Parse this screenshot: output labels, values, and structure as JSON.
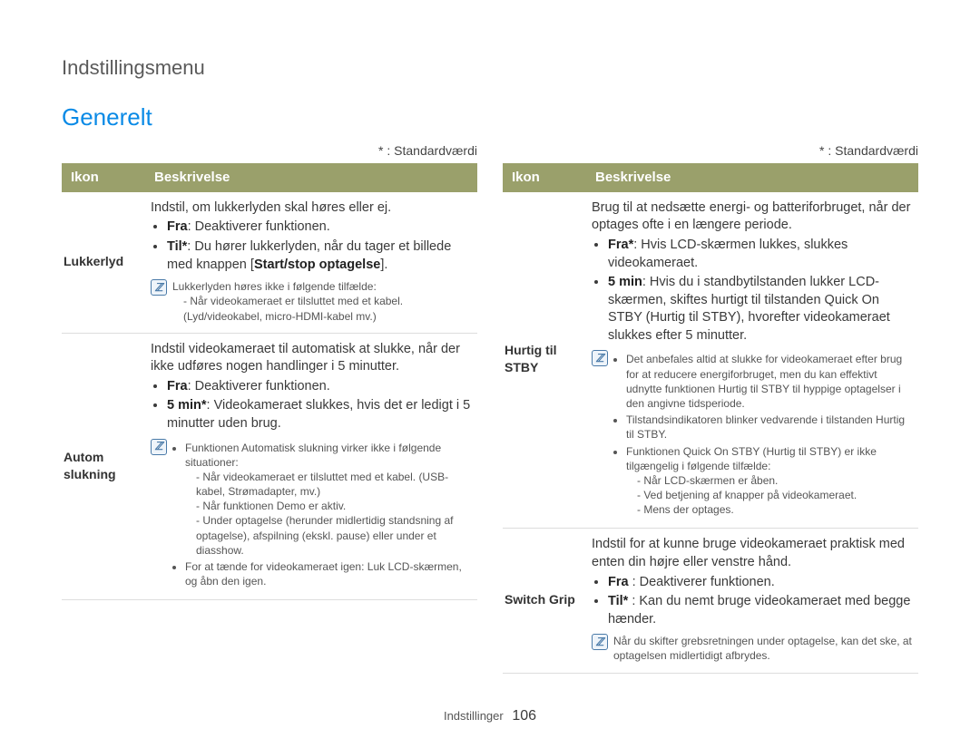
{
  "breadcrumb": "Indstillingsmenu",
  "section_title": "Generelt",
  "std_note": "* : Standardværdi",
  "headers": {
    "icon": "Ikon",
    "desc": "Beskrivelse"
  },
  "footer": {
    "label": "Indstillinger",
    "page": "106"
  },
  "note_glyph": "ℤ",
  "left": {
    "r1": {
      "icon": "Lukkerlyd",
      "intro": "Indstil, om lukkerlyden skal høres eller ej.",
      "b1_label": "Fra",
      "b1_text": ": Deaktiverer funktionen.",
      "b2_label": "Til*",
      "b2_text": ": Du hører lukkerlyden, når du tager et billede med knappen [",
      "b2_strong": "Start/stop optagelse",
      "b2_after": "].",
      "note_l1": "Lukkerlyden høres ikke i følgende tilfælde:",
      "note_l2": "- Når videokameraet er tilsluttet med et kabel. (Lyd/videokabel, micro-HDMI-kabel mv.)"
    },
    "r2": {
      "icon": "Autom slukning",
      "intro": "Indstil videokameraet til automatisk at slukke, når der ikke udføres nogen handlinger i 5 minutter.",
      "b1_label": "Fra",
      "b1_text": ": Deaktiverer funktionen.",
      "b2_label": "5 min*",
      "b2_text": ": Videokameraet slukkes, hvis det er ledigt i 5 minutter uden brug.",
      "note_b1": "Funktionen Automatisk slukning virker ikke i følgende situationer:",
      "note_b1_s1": "- Når videokameraet er tilsluttet med et kabel. (USB-kabel, Strømadapter, mv.)",
      "note_b1_s2": "- Når funktionen Demo er aktiv.",
      "note_b1_s3": "- Under optagelse (herunder midlertidig standsning af optagelse), afspilning (ekskl. pause) eller under et diasshow.",
      "note_b2": "For at tænde for videokameraet igen: Luk LCD-skærmen, og åbn den igen."
    }
  },
  "right": {
    "r1": {
      "icon": "Hurtig til STBY",
      "intro": "Brug til at nedsætte energi- og batteriforbruget, når der optages ofte i en længere periode.",
      "b1_label": "Fra*",
      "b1_text": ": Hvis LCD-skærmen lukkes, slukkes videokameraet.",
      "b2_label": "5 min",
      "b2_text": ": Hvis du i standbytilstanden lukker LCD-skærmen, skiftes hurtigt til tilstanden Quick On STBY (Hurtig til STBY), hvorefter videokameraet slukkes efter 5 minutter.",
      "note_b1": "Det anbefales altid at slukke for videokameraet efter brug for at reducere energiforbruget, men du kan effektivt udnytte funktionen Hurtig til STBY til hyppige optagelser i den angivne tidsperiode.",
      "note_b2": "Tilstandsindikatoren blinker vedvarende i tilstanden Hurtig til STBY.",
      "note_b3": "Funktionen Quick On STBY (Hurtig til STBY) er ikke tilgængelig i følgende tilfælde:",
      "note_b3_s1": "- Når LCD-skærmen er åben.",
      "note_b3_s2": "- Ved betjening af knapper på videokameraet.",
      "note_b3_s3": "- Mens der optages."
    },
    "r2": {
      "icon": "Switch Grip",
      "intro": "Indstil for at kunne bruge videokameraet praktisk med enten din højre eller venstre hånd.",
      "b1_label": "Fra ",
      "b1_text": ": Deaktiverer funktionen.",
      "b2_label": "Til* ",
      "b2_text": ": Kan du nemt bruge videokameraet med begge hænder.",
      "note_l1": "Når du skifter grebsretningen under optagelse, kan det ske, at optagelsen midlertidigt afbrydes."
    }
  }
}
